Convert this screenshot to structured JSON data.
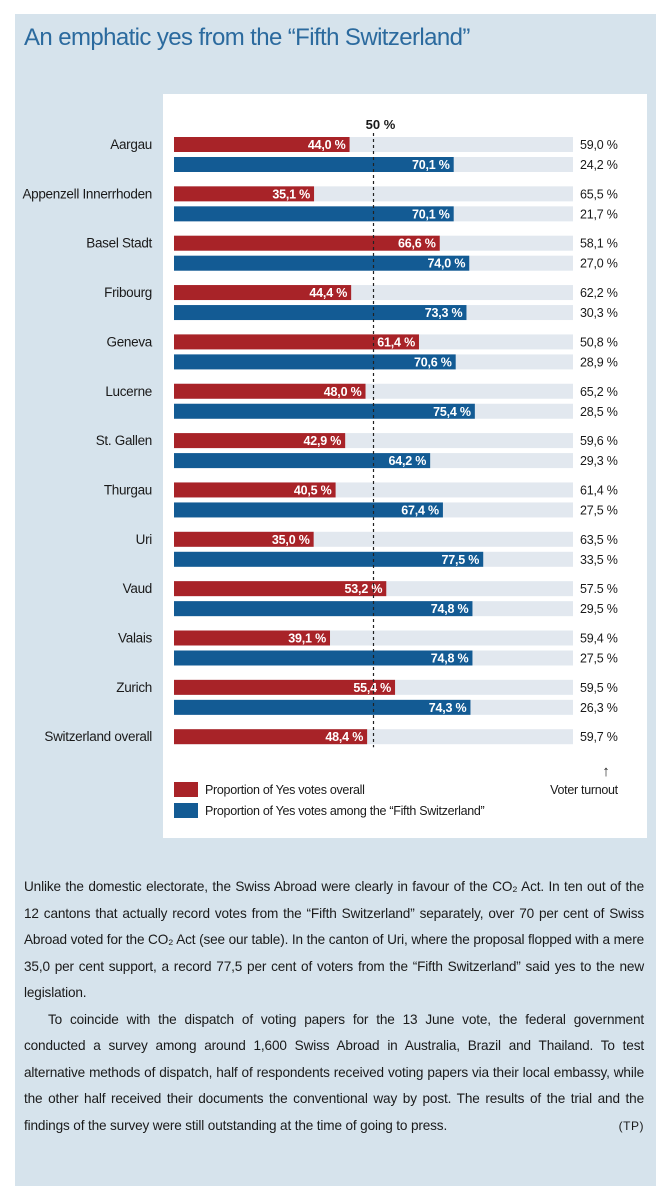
{
  "title": "An emphatic yes from the “Fifth Switzerland”",
  "chart_data": {
    "type": "bar",
    "orientation": "horizontal",
    "reference_line_label": "50 %",
    "reference_value": 50,
    "xlim": [
      0,
      100
    ],
    "categories": [
      "Aargau",
      "Appenzell Innerrhoden",
      "Basel Stadt",
      "Fribourg",
      "Geneva",
      "Lucerne",
      "St. Gallen",
      "Thurgau",
      "Uri",
      "Vaud",
      "Valais",
      "Zurich",
      "Switzerland overall"
    ],
    "series": [
      {
        "name": "Proportion of Yes votes overall",
        "color": "#a82328",
        "values": [
          44.0,
          35.1,
          66.6,
          44.4,
          61.4,
          48.0,
          42.9,
          40.5,
          35.0,
          53.2,
          39.1,
          55.4,
          48.4
        ],
        "labels": [
          "44,0 %",
          "35,1 %",
          "66,6 %",
          "44,4 %",
          "61,4 %",
          "48,0 %",
          "42,9 %",
          "40,5 %",
          "35,0 %",
          "53,2 %",
          "39,1 %",
          "55,4 %",
          "48,4 %"
        ]
      },
      {
        "name": "Proportion of Yes votes among the “Fifth Switzerland”",
        "color": "#135b94",
        "values": [
          70.1,
          70.1,
          74.0,
          73.3,
          70.6,
          75.4,
          64.2,
          67.4,
          77.5,
          74.8,
          74.8,
          74.3,
          null
        ],
        "labels": [
          "70,1 %",
          "70,1 %",
          "74,0 %",
          "73,3 %",
          "70,6 %",
          "75,4 %",
          "64,2 %",
          "67,4 %",
          "77,5 %",
          "74,8 %",
          "74,8 %",
          "74,3 %",
          ""
        ]
      }
    ],
    "turnout": {
      "label": "Voter turnout",
      "arrow": "↑",
      "overall": [
        "59,0 %",
        "65,5 %",
        "58,1 %",
        "62,2 %",
        "50,8 %",
        "65,2 %",
        "59,6 %",
        "61,4 %",
        "63,5 %",
        "57.5 %",
        "59,4 %",
        "59,5 %",
        "59,7 %"
      ],
      "fifth_switzerland": [
        "24,2 %",
        "21,7 %",
        "27,0 %",
        "30,3 %",
        "28,9 %",
        "28,5 %",
        "29,3 %",
        "27,5 %",
        "33,5 %",
        "29,5 %",
        "27,5 %",
        "26,3 %",
        ""
      ]
    },
    "track_color": "#e2e8ef",
    "legend_placement": "bottom-left"
  },
  "body": {
    "paragraph1": "Unlike the domestic electorate, the Swiss Abroad were clearly in favour of the CO₂ Act. In ten out of the 12 cantons that actually record votes from the “Fifth Switzerland” separately, over 70 per cent of Swiss Abroad voted for the CO₂ Act (see our table). In the canton of Uri, where the proposal flopped with a mere 35,0 per cent support, a record 77,5 per cent of voters from the “Fifth Switzerland” said yes to the new legislation.",
    "paragraph2": "To coincide with the dispatch of voting papers for the 13 June vote, the federal government conducted a survey among around 1,600 Swiss Abroad in Australia, Brazil and Thailand. To test alternative methods of dispatch, half of respondents received voting papers via their local embassy, while the other half received their documents the conventional way by post. The results of the trial and the findings of the survey were still outstanding at the time of going to press.",
    "credit": "(TP)"
  }
}
